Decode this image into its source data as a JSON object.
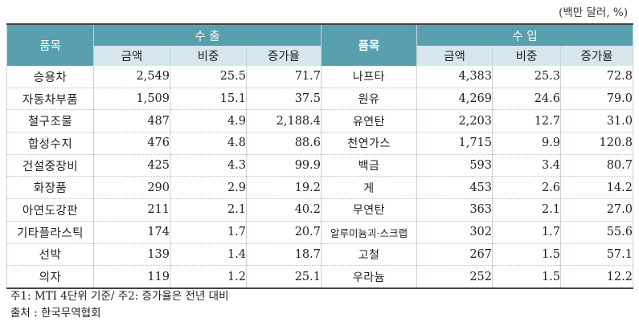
{
  "unit": "(백만 달러, %)",
  "headers": {
    "item": "품목",
    "export": "수 출",
    "import": "수 입",
    "amount": "금액",
    "share": "비중",
    "growth": "증가율"
  },
  "rows": [
    {
      "exp": [
        "승용차",
        "2,549",
        "25.5",
        "71.7"
      ],
      "imp": [
        "나프타",
        "4,383",
        "25.3",
        "72.8"
      ]
    },
    {
      "exp": [
        "자동차부품",
        "1,509",
        "15.1",
        "37.5"
      ],
      "imp": [
        "원유",
        "4,269",
        "24.6",
        "79.0"
      ]
    },
    {
      "exp": [
        "철구조물",
        "487",
        "4.9",
        "2,188.4"
      ],
      "imp": [
        "유연탄",
        "2,203",
        "12.7",
        "31.0"
      ]
    },
    {
      "exp": [
        "합성수지",
        "476",
        "4.8",
        "88.6"
      ],
      "imp": [
        "천연가스",
        "1,715",
        "9.9",
        "120.8"
      ]
    },
    {
      "exp": [
        "건설중장비",
        "425",
        "4.3",
        "99.9"
      ],
      "imp": [
        "백금",
        "593",
        "3.4",
        "80.7"
      ]
    },
    {
      "exp": [
        "화장품",
        "290",
        "2.9",
        "19.2"
      ],
      "imp": [
        "게",
        "453",
        "2.6",
        "14.2"
      ]
    },
    {
      "exp": [
        "아연도강판",
        "211",
        "2.1",
        "40.2"
      ],
      "imp": [
        "무연탄",
        "363",
        "2.1",
        "27.0"
      ]
    },
    {
      "exp": [
        "기타플라스틱",
        "174",
        "1.7",
        "20.7"
      ],
      "imp": [
        "알루미늄괴·스크랩",
        "302",
        "1.7",
        "55.6"
      ]
    },
    {
      "exp": [
        "선박",
        "139",
        "1.4",
        "18.7"
      ],
      "imp": [
        "고철",
        "267",
        "1.5",
        "57.1"
      ]
    },
    {
      "exp": [
        "의자",
        "119",
        "1.2",
        "25.1"
      ],
      "imp": [
        "우라늄",
        "252",
        "1.5",
        "12.2"
      ]
    }
  ],
  "notes": {
    "note1": "주1: MTI 4단위 기준/ 주2: 증가율은 전년 대비",
    "source": "출처 : 한국무역협회"
  }
}
